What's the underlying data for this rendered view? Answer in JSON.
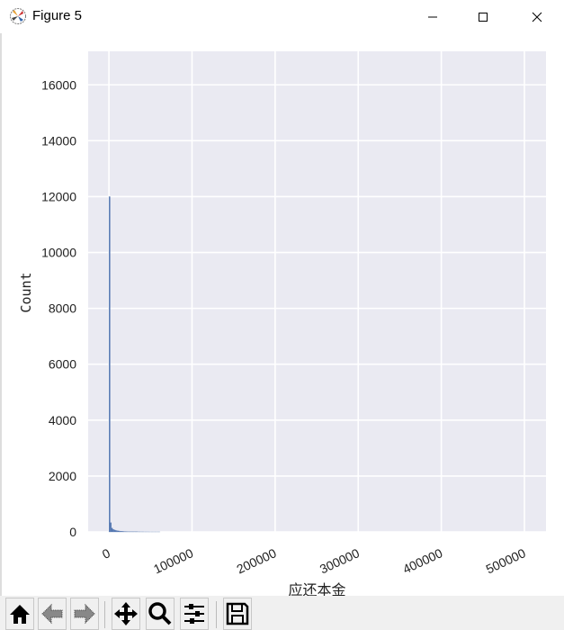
{
  "window": {
    "title": "Figure 5",
    "icon": "matplotlib-icon",
    "controls": [
      "minimize-icon",
      "maximize-icon",
      "close-icon"
    ]
  },
  "toolbar": {
    "buttons": [
      {
        "name": "home",
        "icon": "home-icon"
      },
      {
        "name": "back",
        "icon": "arrow-left-icon"
      },
      {
        "name": "forward",
        "icon": "arrow-right-icon"
      },
      {
        "name": "pan",
        "icon": "move-icon"
      },
      {
        "name": "zoom",
        "icon": "magnifier-icon"
      },
      {
        "name": "configure",
        "icon": "sliders-icon"
      },
      {
        "name": "save",
        "icon": "floppy-disk-icon"
      }
    ]
  },
  "chart_data": {
    "type": "bar",
    "title": "",
    "xlabel": "应还本金",
    "ylabel": "Count",
    "xlim": [
      -25000,
      526000
    ],
    "ylim": [
      0,
      17200
    ],
    "grid": true,
    "background": "#eaeaf2",
    "bar_color": "#4c72b0",
    "xticks": [
      0,
      100000,
      200000,
      300000,
      400000,
      500000
    ],
    "xtick_labels": [
      "0",
      "100000",
      "200000",
      "300000",
      "400000",
      "500000"
    ],
    "yticks": [
      0,
      2000,
      4000,
      6000,
      8000,
      10000,
      12000,
      14000,
      16000
    ],
    "ytick_labels": [
      "0",
      "2000",
      "4000",
      "6000",
      "8000",
      "10000",
      "12000",
      "14000",
      "16000"
    ],
    "bin_width": 1500,
    "bin_start": 0,
    "values": [
      12000,
      330,
      140,
      90,
      70,
      55,
      45,
      38,
      30,
      25,
      22,
      18,
      15,
      14,
      12,
      10,
      9,
      8,
      7,
      6,
      6,
      5,
      5,
      4,
      4,
      3,
      3,
      3,
      2,
      2,
      2,
      2,
      1,
      1,
      1,
      1,
      1,
      1,
      1,
      1,
      1
    ]
  }
}
